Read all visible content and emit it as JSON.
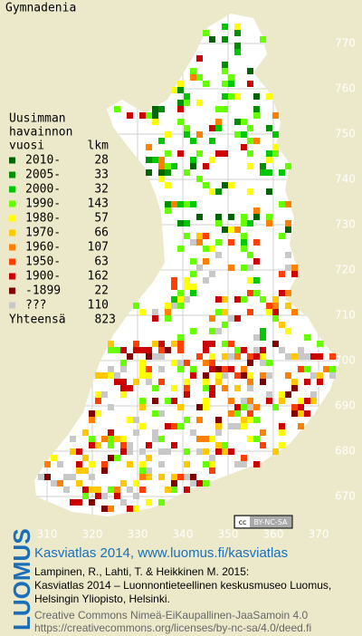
{
  "title": "Gymnadenia",
  "legend": {
    "heading": [
      "Uusimman",
      "havainnon"
    ],
    "columns": [
      "vuosi",
      "lkm"
    ],
    "rows": [
      {
        "label": "2010-",
        "count": 28,
        "color": "#006400"
      },
      {
        "label": "2005-",
        "count": 33,
        "color": "#008f00"
      },
      {
        "label": "2000-",
        "count": 32,
        "color": "#00c800"
      },
      {
        "label": "1990-",
        "count": 143,
        "color": "#66ff00"
      },
      {
        "label": "1980-",
        "count": 57,
        "color": "#ffff00"
      },
      {
        "label": "1970-",
        "count": 66,
        "color": "#ffc800"
      },
      {
        "label": "1960-",
        "count": 107,
        "color": "#ff8000"
      },
      {
        "label": "1950-",
        "count": 63,
        "color": "#ff4000"
      },
      {
        "label": "1900-",
        "count": 162,
        "color": "#cc0000"
      },
      {
        "label": "-1899",
        "count": 22,
        "color": "#800000"
      },
      {
        "label": "???",
        "count": 110,
        "color": "#c8c8c8"
      }
    ],
    "total": {
      "label": "Yhteensä",
      "count": 823
    }
  },
  "axes": {
    "y_labels": [
      770,
      760,
      750,
      740,
      730,
      720,
      710,
      700,
      690,
      680,
      670
    ],
    "x_labels": [
      310,
      320,
      330,
      340,
      350,
      360,
      370
    ]
  },
  "license_badge": "BY-NC-SA",
  "footer": {
    "logo": "LUOMUS",
    "title": "Kasviatlas 2014, www.luomus.fi/kasviatlas",
    "citation": [
      "Lampinen, R., Lahti, T. & Heikkinen M. 2015:",
      "Kasviatlas 2014 – Luonnontieteellinen keskusmuseo Luomus,",
      "Helsingin Yliopisto, Helsinki."
    ],
    "license": [
      "Creative Commons Nimeä-EiKaupallinen-JaaSamoin 4.0",
      "https://creativecommons.org/licenses/by-nc-sa/4.0/deed.fi"
    ]
  }
}
